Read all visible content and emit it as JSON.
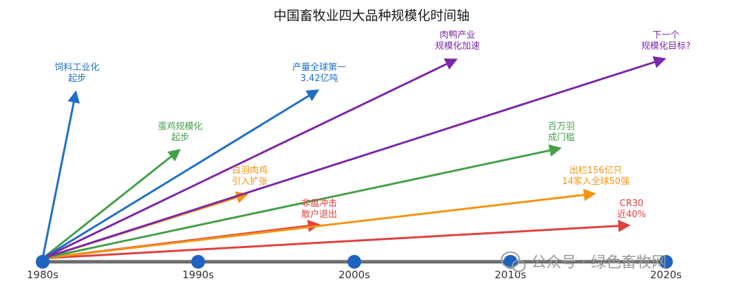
{
  "title": "中国畜牧业四大品种规模化时间轴",
  "decades": [
    "1980s",
    "1990s",
    "2000s",
    "2010s",
    "2020s"
  ],
  "colors": {
    "blue": "#1f6fc5",
    "purple": "#7b28a8",
    "green": "#45a049",
    "orange": "#f39410",
    "red": "#e04040",
    "axis": "#6b6b6b",
    "dot": "#1f63c0"
  },
  "arrows": [
    {
      "id": "feed-industrialization",
      "color": "blue",
      "lines": [
        "饲料工业化",
        "起步"
      ]
    },
    {
      "id": "output-world-first",
      "color": "blue",
      "lines": [
        "产量全球第一",
        "3.42亿吨"
      ]
    },
    {
      "id": "egg-scale-start",
      "color": "green",
      "lines": [
        "蛋鸡规模化",
        "起步"
      ]
    },
    {
      "id": "million-birds-cages",
      "color": "green",
      "lines": [
        "百万羽",
        "成门槛"
      ]
    },
    {
      "id": "duck-scale-accelerate",
      "color": "purple",
      "lines": [
        "肉鸭产业",
        "规模化加速"
      ]
    },
    {
      "id": "next-scale-target",
      "color": "purple",
      "lines": [
        "下一个",
        "规模化目标?"
      ]
    },
    {
      "id": "broiler-introduce",
      "color": "orange",
      "lines": [
        "白羽肉鸡",
        "引入扩张"
      ]
    },
    {
      "id": "output-15-6b",
      "color": "orange",
      "lines": [
        "出栏156亿只",
        "14家入全球50强"
      ]
    },
    {
      "id": "asf-shock",
      "color": "red",
      "lines": [
        "非瘟冲击",
        "散户退出"
      ]
    },
    {
      "id": "cr30-40pct",
      "color": "red",
      "lines": [
        "CR30",
        "近40%"
      ]
    }
  ],
  "watermark": "公众号 · 绿色畜牧网",
  "watermark_icon": "wechat-icon"
}
